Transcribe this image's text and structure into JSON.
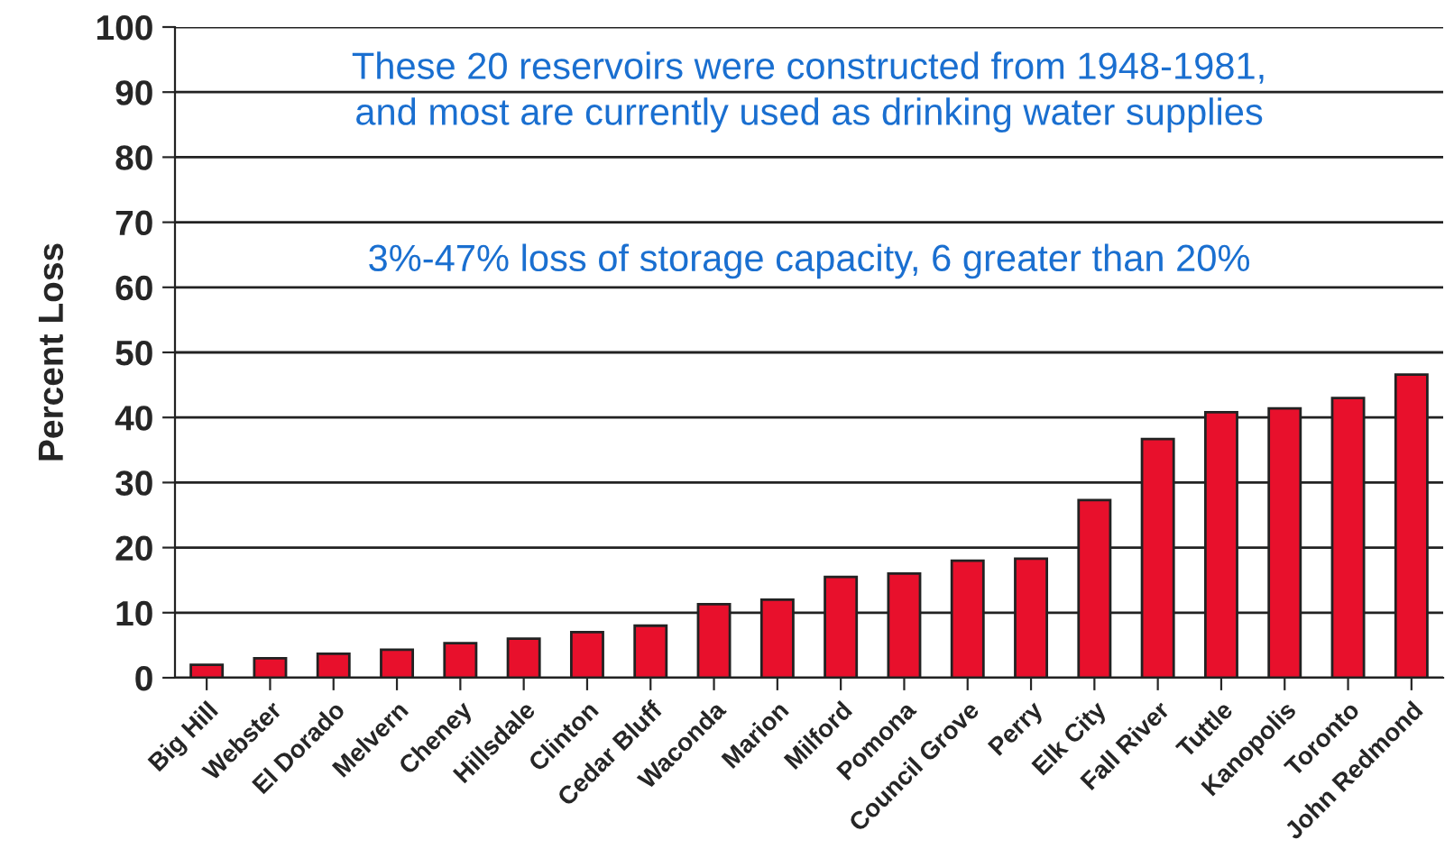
{
  "chart_data": {
    "type": "bar",
    "ylabel": "Percent Loss",
    "categories": [
      "Big Hill",
      "Webster",
      "El Dorado",
      "Melvern",
      "Cheney",
      "Hillsdale",
      "Clinton",
      "Cedar Bluff",
      "Waconda",
      "Marion",
      "Milford",
      "Pomona",
      "Council Grove",
      "Perry",
      "Elk City",
      "Fall River",
      "Tuttle",
      "Kanopolis",
      "Toronto",
      "John Redmond"
    ],
    "values": [
      2,
      3,
      3.7,
      4.3,
      5.3,
      6,
      7,
      8,
      11.3,
      12,
      15.5,
      16,
      18,
      18.3,
      27.3,
      36.7,
      40.8,
      41.4,
      43,
      46.6
    ],
    "color": "#e8102c",
    "ylim": [
      0,
      100
    ],
    "yticks": [
      0,
      10,
      20,
      30,
      40,
      50,
      60,
      70,
      80,
      90,
      100
    ],
    "grid": "y",
    "annotations": [
      "These 20 reservoirs were constructed from 1948-1981,\nand most are currently used as drinking water supplies",
      "3%-47% loss of storage capacity, 6 greater than 20%"
    ]
  }
}
